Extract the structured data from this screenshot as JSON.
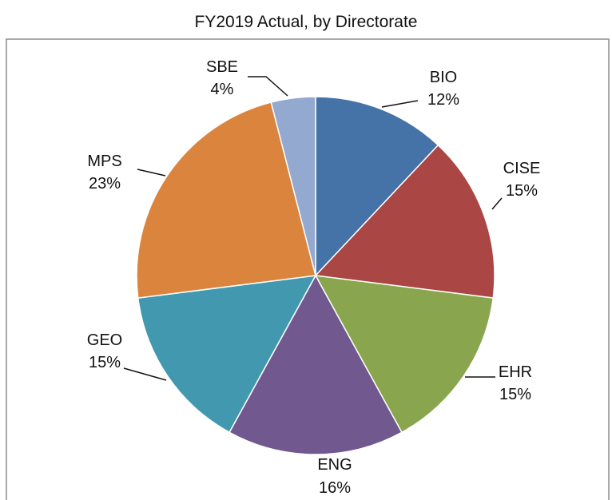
{
  "chart_data": {
    "type": "pie",
    "title": "",
    "subtitle": "FY2019 Actual, by Directorate",
    "categories": [
      "BIO",
      "CISE",
      "EHR",
      "ENG",
      "GEO",
      "MPS",
      "SBE"
    ],
    "values": [
      12,
      15,
      15,
      16,
      15,
      23,
      4
    ],
    "percent_labels": [
      "12%",
      "15%",
      "15%",
      "16%",
      "15%",
      "23%",
      "4%"
    ],
    "colors": [
      "#4572A7",
      "#AA4643",
      "#89A54E",
      "#71588F",
      "#4198AF",
      "#DB843D",
      "#93A9CF"
    ],
    "start": "12 o'clock, clockwise",
    "legend": "none (labels next to slices)"
  }
}
